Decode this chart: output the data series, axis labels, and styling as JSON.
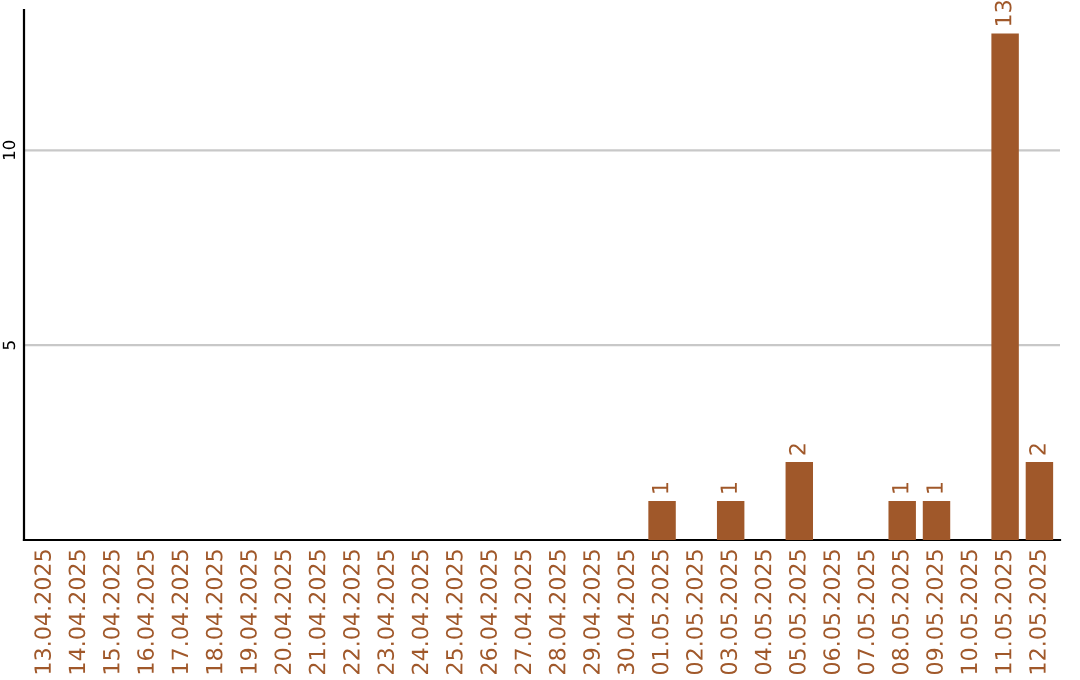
{
  "chart_data": {
    "type": "bar",
    "categories": [
      "13.04.2025",
      "14.04.2025",
      "15.04.2025",
      "16.04.2025",
      "17.04.2025",
      "18.04.2025",
      "19.04.2025",
      "20.04.2025",
      "21.04.2025",
      "22.04.2025",
      "23.04.2025",
      "24.04.2025",
      "25.04.2025",
      "26.04.2025",
      "27.04.2025",
      "28.04.2025",
      "29.04.2025",
      "30.04.2025",
      "01.05.2025",
      "02.05.2025",
      "03.05.2025",
      "04.05.2025",
      "05.05.2025",
      "06.05.2025",
      "07.05.2025",
      "08.05.2025",
      "09.05.2025",
      "10.05.2025",
      "11.05.2025",
      "12.05.2025"
    ],
    "values": [
      0,
      0,
      0,
      0,
      0,
      0,
      0,
      0,
      0,
      0,
      0,
      0,
      0,
      0,
      0,
      0,
      0,
      0,
      1,
      0,
      1,
      0,
      2,
      0,
      0,
      1,
      1,
      0,
      13,
      2
    ],
    "value_labels": [
      null,
      null,
      null,
      null,
      null,
      null,
      null,
      null,
      null,
      null,
      null,
      null,
      null,
      null,
      null,
      null,
      null,
      null,
      "1",
      null,
      "1",
      null,
      "2",
      null,
      null,
      "1",
      "1",
      null,
      "13",
      "2"
    ],
    "color": "#a0582a",
    "ylim": [
      0,
      13.6
    ],
    "yticks": [
      5,
      10
    ],
    "grid": "y"
  }
}
